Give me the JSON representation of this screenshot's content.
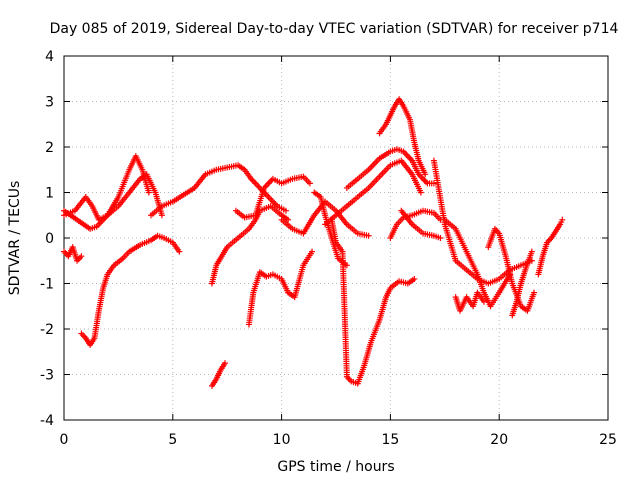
{
  "chart_data": {
    "type": "scatter",
    "title": "Day 085 of 2019, Sidereal Day-to-day VTEC variation (SDTVAR) for receiver p714",
    "xlabel": "GPS time / hours",
    "ylabel": "SDTVAR / TECUs",
    "xlim": [
      0,
      25
    ],
    "ylim": [
      -4,
      4
    ],
    "xticks": [
      "0",
      "5",
      "10",
      "15",
      "20",
      "25"
    ],
    "yticks": [
      "-4",
      "-3",
      "-2",
      "-1",
      "0",
      "1",
      "2",
      "3",
      "4"
    ],
    "grid": true,
    "marker": "+",
    "color": "#ff0000",
    "series": [
      {
        "name": "s1",
        "x": [
          0.0,
          0.3,
          0.6,
          0.9,
          1.2,
          1.5,
          2.0,
          2.5,
          3.0,
          3.3,
          3.6,
          3.9
        ],
        "y": [
          0.6,
          0.5,
          0.4,
          0.3,
          0.2,
          0.25,
          0.5,
          0.9,
          1.5,
          1.8,
          1.5,
          1.0
        ]
      },
      {
        "name": "s2",
        "x": [
          0.0,
          0.5,
          1.0,
          1.3,
          1.6,
          2.0,
          2.5,
          3.0,
          3.5,
          3.8,
          4.2,
          4.5
        ],
        "y": [
          0.5,
          0.6,
          0.9,
          0.7,
          0.4,
          0.5,
          0.7,
          1.0,
          1.3,
          1.4,
          1.0,
          0.5
        ]
      },
      {
        "name": "s3",
        "x": [
          0.0,
          0.2,
          0.4,
          0.6,
          0.8
        ],
        "y": [
          -0.3,
          -0.4,
          -0.2,
          -0.5,
          -0.4
        ]
      },
      {
        "name": "s4",
        "x": [
          0.8,
          1.0,
          1.2,
          1.4,
          1.6,
          1.8,
          2.0,
          2.3,
          2.7,
          3.0,
          3.5,
          4.0,
          4.3,
          4.6,
          5.0,
          5.3
        ],
        "y": [
          -2.1,
          -2.2,
          -2.35,
          -2.2,
          -1.6,
          -1.1,
          -0.8,
          -0.6,
          -0.45,
          -0.3,
          -0.15,
          -0.05,
          0.05,
          0.0,
          -0.1,
          -0.3
        ]
      },
      {
        "name": "s5",
        "x": [
          4.0,
          4.5,
          5.0,
          5.5,
          6.0,
          6.5,
          7.0,
          7.5,
          8.0,
          8.3,
          8.6,
          9.0,
          9.4,
          9.8,
          10.2
        ],
        "y": [
          0.5,
          0.7,
          0.8,
          0.95,
          1.1,
          1.4,
          1.5,
          1.55,
          1.6,
          1.5,
          1.3,
          1.1,
          0.9,
          0.7,
          0.6
        ]
      },
      {
        "name": "s6",
        "x": [
          6.8,
          7.0,
          7.2,
          7.4
        ],
        "y": [
          -3.25,
          -3.1,
          -2.9,
          -2.75
        ]
      },
      {
        "name": "s7",
        "x": [
          6.8,
          7.0,
          7.5,
          8.0,
          8.5,
          8.8,
          9.0,
          9.5,
          10.0,
          10.3
        ],
        "y": [
          -1.0,
          -0.6,
          -0.2,
          0.0,
          0.2,
          0.4,
          0.6,
          0.7,
          0.5,
          0.4
        ]
      },
      {
        "name": "s8",
        "x": [
          7.9,
          8.3,
          8.8,
          9.2,
          9.6,
          10.0,
          10.5,
          11.0,
          11.3
        ],
        "y": [
          0.6,
          0.45,
          0.5,
          1.1,
          1.3,
          1.2,
          1.3,
          1.35,
          1.2
        ]
      },
      {
        "name": "s9",
        "x": [
          8.5,
          8.7,
          9.0,
          9.3,
          9.6,
          10.0,
          10.3,
          10.6,
          11.0,
          11.4
        ],
        "y": [
          -1.9,
          -1.2,
          -0.75,
          -0.85,
          -0.8,
          -0.9,
          -1.2,
          -1.3,
          -0.6,
          -0.3
        ]
      },
      {
        "name": "s10",
        "x": [
          10.0,
          10.5,
          11.0,
          11.5,
          12.0,
          12.5,
          13.0,
          13.5,
          14.0
        ],
        "y": [
          0.4,
          0.2,
          0.1,
          0.5,
          0.8,
          0.6,
          0.3,
          0.1,
          0.05
        ]
      },
      {
        "name": "s11",
        "x": [
          11.5,
          11.8,
          12.0,
          12.3,
          12.6,
          13.0
        ],
        "y": [
          1.0,
          0.9,
          0.5,
          0.0,
          -0.45,
          -0.6
        ]
      },
      {
        "name": "s12",
        "x": [
          12.0,
          12.5,
          13.0,
          13.5,
          14.0,
          14.5,
          15.0,
          15.5,
          16.0,
          16.4
        ],
        "y": [
          0.3,
          0.5,
          0.7,
          0.9,
          1.1,
          1.35,
          1.6,
          1.7,
          1.4,
          1.0
        ]
      },
      {
        "name": "s13",
        "x": [
          12.3,
          12.5,
          12.8,
          13.0,
          13.2,
          13.5,
          13.8,
          14.1,
          14.5,
          14.8,
          15.0,
          15.4,
          15.8,
          16.1
        ],
        "y": [
          0.4,
          -0.1,
          -0.3,
          -3.05,
          -3.15,
          -3.2,
          -2.8,
          -2.3,
          -1.8,
          -1.3,
          -1.1,
          -0.95,
          -1.0,
          -0.9
        ]
      },
      {
        "name": "s14",
        "x": [
          13.0,
          13.5,
          14.0,
          14.5,
          15.0,
          15.3,
          15.6,
          16.0,
          16.3,
          16.7,
          17.0
        ],
        "y": [
          1.1,
          1.3,
          1.5,
          1.75,
          1.9,
          1.95,
          1.9,
          1.7,
          1.4,
          1.2,
          1.2
        ]
      },
      {
        "name": "s15",
        "x": [
          14.5,
          14.8,
          15.0,
          15.2,
          15.4,
          15.6,
          15.9,
          16.1,
          16.3,
          16.6
        ],
        "y": [
          2.3,
          2.5,
          2.7,
          2.9,
          3.05,
          2.9,
          2.6,
          2.1,
          1.7,
          1.4
        ]
      },
      {
        "name": "s16",
        "x": [
          15.0,
          15.3,
          15.6,
          16.0,
          16.5,
          17.0,
          17.3
        ],
        "y": [
          0.0,
          0.3,
          0.45,
          0.5,
          0.6,
          0.55,
          0.4
        ]
      },
      {
        "name": "s17",
        "x": [
          15.5,
          16.0,
          16.5,
          17.0,
          17.3
        ],
        "y": [
          0.6,
          0.3,
          0.1,
          0.05,
          0.0
        ]
      },
      {
        "name": "s18",
        "x": [
          17.0,
          17.5,
          18.0,
          18.5,
          19.0,
          19.5,
          20.0,
          20.5,
          21.0,
          21.5
        ],
        "y": [
          1.7,
          0.3,
          -0.5,
          -0.7,
          -0.9,
          -1.0,
          -0.9,
          -0.7,
          -0.6,
          -0.5
        ]
      },
      {
        "name": "s19",
        "x": [
          17.5,
          18.0,
          18.5,
          19.0,
          19.3,
          19.6,
          20.0,
          20.5
        ],
        "y": [
          0.4,
          0.2,
          -0.3,
          -0.8,
          -1.2,
          -1.5,
          -1.2,
          -0.8
        ]
      },
      {
        "name": "s20",
        "x": [
          18.0,
          18.2,
          18.5,
          18.8,
          19.0,
          19.3
        ],
        "y": [
          -1.3,
          -1.6,
          -1.3,
          -1.5,
          -1.2,
          -1.4
        ]
      },
      {
        "name": "s21",
        "x": [
          19.5,
          19.8,
          20.0,
          20.3,
          20.6,
          21.0,
          21.3,
          21.6
        ],
        "y": [
          -0.2,
          0.2,
          0.1,
          -0.4,
          -1.0,
          -1.5,
          -1.6,
          -1.2
        ]
      },
      {
        "name": "s22",
        "x": [
          20.6,
          20.8,
          21.0,
          21.2,
          21.5
        ],
        "y": [
          -1.7,
          -1.4,
          -1.0,
          -0.7,
          -0.3
        ]
      },
      {
        "name": "s23",
        "x": [
          21.8,
          22.0,
          22.2,
          22.4,
          22.6,
          22.8,
          22.9
        ],
        "y": [
          -0.8,
          -0.4,
          -0.1,
          0.0,
          0.15,
          0.3,
          0.4
        ]
      }
    ]
  }
}
